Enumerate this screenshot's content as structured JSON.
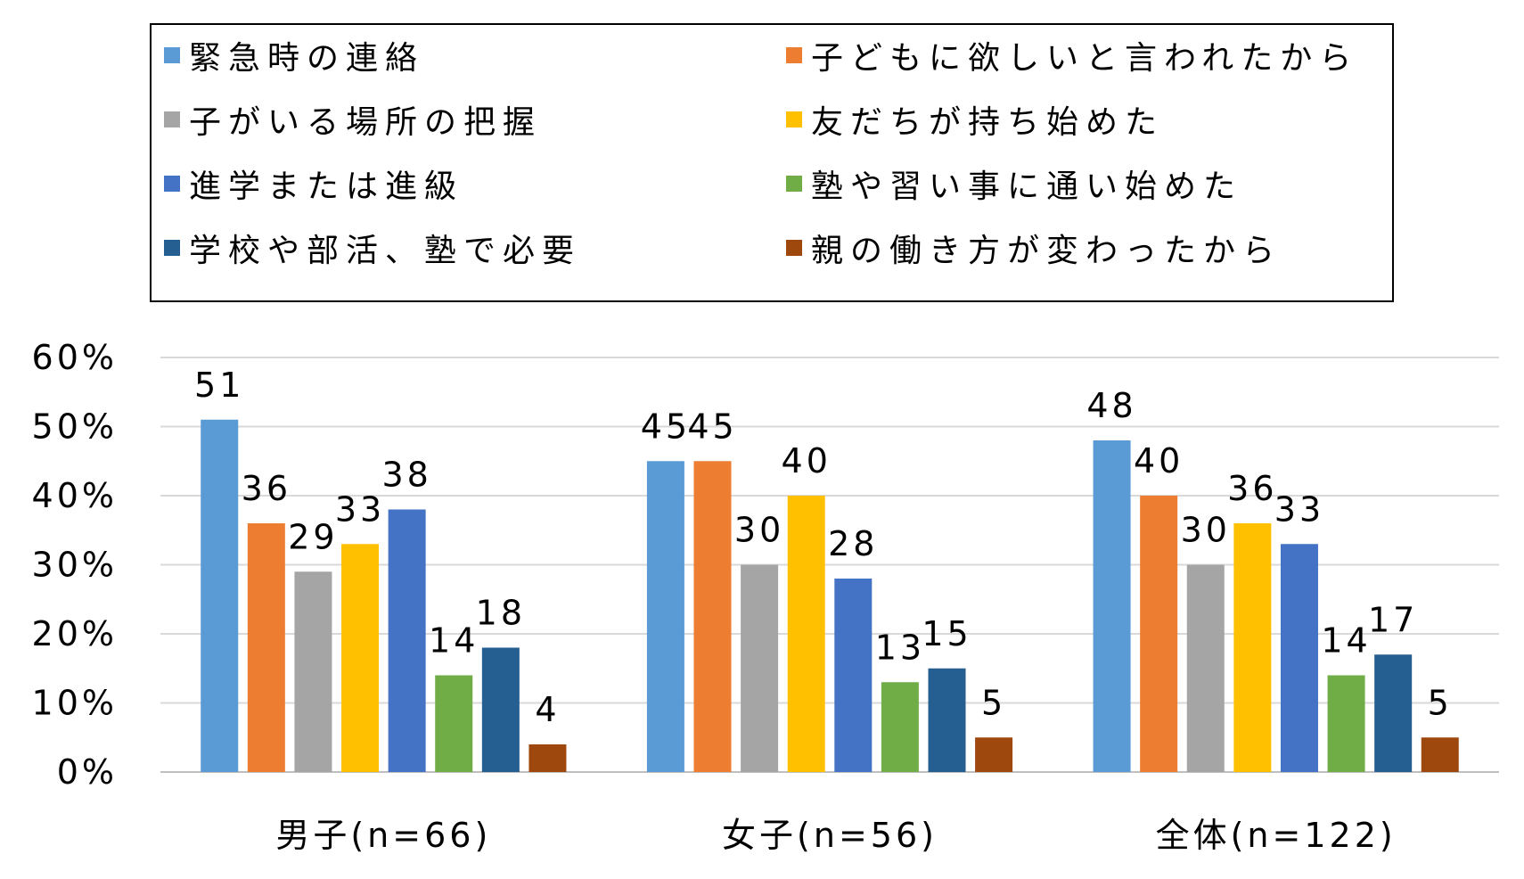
{
  "chart_data": {
    "type": "bar",
    "categories": [
      "男子(n=66)",
      "女子(n=56)",
      "全体(n=122)"
    ],
    "series": [
      {
        "name": "緊急時の連絡",
        "color": "#5B9BD5",
        "values": [
          51,
          45,
          48
        ]
      },
      {
        "name": "子どもに欲しいと言われたから",
        "color": "#ED7D31",
        "values": [
          36,
          45,
          40
        ]
      },
      {
        "name": "子がいる場所の把握",
        "color": "#A5A5A5",
        "values": [
          29,
          30,
          30
        ]
      },
      {
        "name": "友だちが持ち始めた",
        "color": "#FFC000",
        "values": [
          33,
          40,
          36
        ]
      },
      {
        "name": "進学または進級",
        "color": "#4472C4",
        "values": [
          38,
          28,
          33
        ]
      },
      {
        "name": "塾や習い事に通い始めた",
        "color": "#70AD47",
        "values": [
          14,
          13,
          14
        ]
      },
      {
        "name": "学校や部活、塾で必要",
        "color": "#255E91",
        "values": [
          18,
          15,
          17
        ]
      },
      {
        "name": "親の働き方が変わったから",
        "color": "#9E480E",
        "values": [
          4,
          5,
          5
        ]
      }
    ],
    "yticks": [
      "0%",
      "10%",
      "20%",
      "30%",
      "40%",
      "50%",
      "60%"
    ],
    "ylim": [
      0,
      60
    ],
    "grid": true,
    "legend_position": "top"
  }
}
